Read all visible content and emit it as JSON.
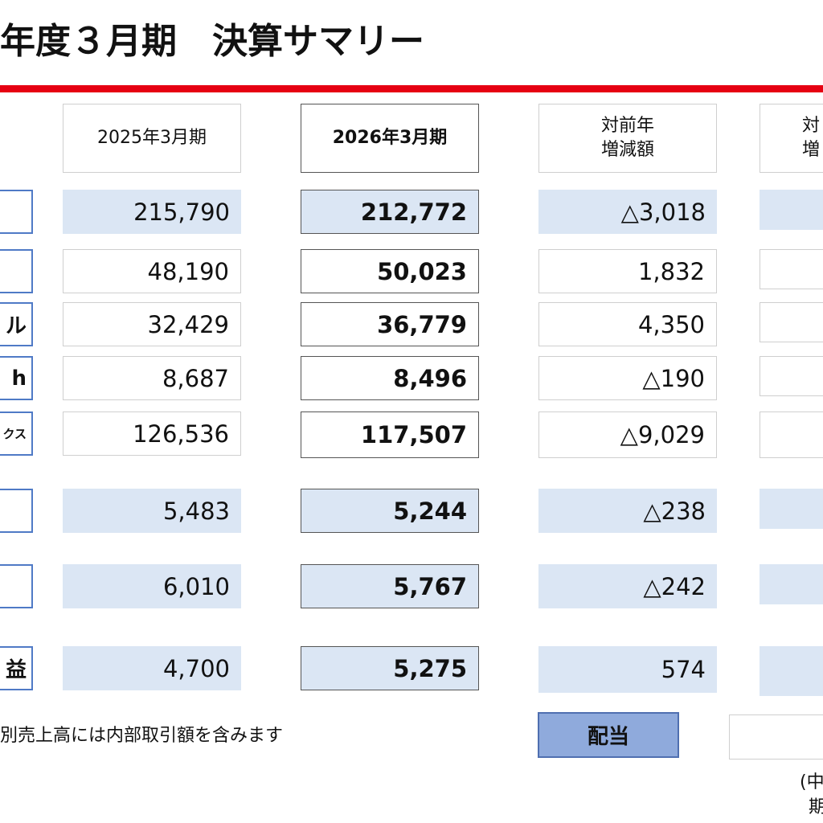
{
  "title": "年度３月期　決算サマリー",
  "columns": {
    "fy2025": "2025年3月期",
    "fy2026": "2026年3月期",
    "yoy_diff_l1": "対前年",
    "yoy_diff_l2": "増減額",
    "partial_l1": "対",
    "partial_l2": "増"
  },
  "rows": [
    {
      "label": "",
      "fy2025": "215,790",
      "fy2026": "212,772",
      "diff": "△3,018"
    },
    {
      "label": "",
      "fy2025": "48,190",
      "fy2026": "50,023",
      "diff": "1,832"
    },
    {
      "label": "ル",
      "fy2025": "32,429",
      "fy2026": "36,779",
      "diff": "4,350"
    },
    {
      "label": "h",
      "fy2025": "8,687",
      "fy2026": "8,496",
      "diff": "△190"
    },
    {
      "label": "クス",
      "fy2025": "126,536",
      "fy2026": "117,507",
      "diff": "△9,029"
    },
    {
      "label": "",
      "fy2025": "5,483",
      "fy2026": "5,244",
      "diff": "△238"
    },
    {
      "label": "",
      "fy2025": "6,010",
      "fy2026": "5,767",
      "diff": "△242"
    },
    {
      "label": "益",
      "fy2025": "4,700",
      "fy2026": "5,275",
      "diff": "574"
    }
  ],
  "note": "別売上高には内部取引額を含みます",
  "dividend_button": "配当",
  "footer_l1": "(中",
  "footer_l2": "期",
  "colors": {
    "accent_red": "#e60012",
    "shade_blue": "#dbe6f4",
    "button_blue": "#8faadc",
    "label_border": "#4f7ac6"
  }
}
